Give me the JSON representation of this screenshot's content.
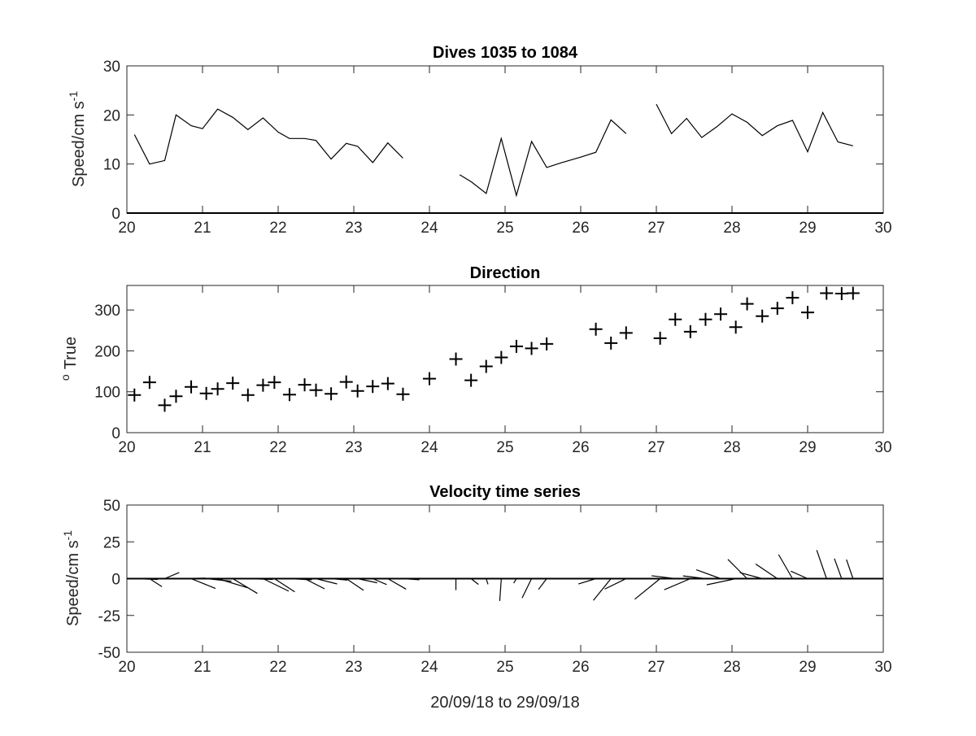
{
  "chart_data": [
    {
      "type": "line",
      "title": "Dives 1035 to 1084",
      "xlabel": "",
      "ylabel": "Speed/cm s",
      "ylabel_superscript": "-1",
      "xlim": [
        20,
        30
      ],
      "ylim": [
        0,
        30
      ],
      "xticks": [
        "20",
        "21",
        "22",
        "23",
        "24",
        "25",
        "26",
        "27",
        "28",
        "29",
        "30"
      ],
      "yticks": [
        "0",
        "10",
        "20",
        "30"
      ],
      "grid": false,
      "baseline": 0,
      "series": [
        {
          "segments": [
            [
              [
                20.1,
                16
              ],
              [
                20.3,
                10
              ],
              [
                20.5,
                10.7
              ],
              [
                20.65,
                20
              ],
              [
                20.85,
                17.8
              ],
              [
                21.0,
                17.2
              ],
              [
                21.2,
                21.2
              ],
              [
                21.4,
                19.5
              ],
              [
                21.6,
                17.0
              ],
              [
                21.8,
                19.4
              ],
              [
                22.0,
                16.5
              ],
              [
                22.15,
                15.2
              ],
              [
                22.35,
                15.2
              ],
              [
                22.5,
                14.8
              ],
              [
                22.7,
                11.0
              ],
              [
                22.9,
                14.2
              ],
              [
                23.05,
                13.6
              ],
              [
                23.25,
                10.3
              ],
              [
                23.45,
                14.3
              ],
              [
                23.65,
                11.2
              ]
            ],
            [
              [
                24.4,
                7.8
              ],
              [
                24.55,
                6.4
              ],
              [
                24.75,
                4.0
              ],
              [
                24.95,
                15.2
              ],
              [
                25.15,
                3.6
              ],
              [
                25.35,
                14.6
              ],
              [
                25.55,
                9.3
              ],
              [
                25.75,
                10.3
              ],
              [
                26.0,
                11.4
              ],
              [
                26.2,
                12.4
              ],
              [
                26.4,
                19.0
              ],
              [
                26.6,
                16.2
              ]
            ],
            [
              [
                27.0,
                22.2
              ],
              [
                27.2,
                16.2
              ],
              [
                27.4,
                19.3
              ],
              [
                27.6,
                15.4
              ],
              [
                27.8,
                17.6
              ],
              [
                28.0,
                20.2
              ],
              [
                28.2,
                18.5
              ],
              [
                28.4,
                15.8
              ],
              [
                28.6,
                17.8
              ],
              [
                28.8,
                18.9
              ],
              [
                29.0,
                12.5
              ],
              [
                29.2,
                20.5
              ],
              [
                29.4,
                14.5
              ],
              [
                29.6,
                13.7
              ]
            ]
          ]
        }
      ]
    },
    {
      "type": "scatter",
      "title": "Direction",
      "xlabel": "",
      "ylabel": "True",
      "ylabel_prefix": "o",
      "marker": "+",
      "xlim": [
        20,
        30
      ],
      "ylim": [
        0,
        360
      ],
      "xticks": [
        "20",
        "21",
        "22",
        "23",
        "24",
        "25",
        "26",
        "27",
        "28",
        "29",
        "30"
      ],
      "yticks": [
        "0",
        "100",
        "200",
        "300"
      ],
      "grid": false,
      "points": [
        [
          20.1,
          92
        ],
        [
          20.3,
          123
        ],
        [
          20.5,
          67
        ],
        [
          20.65,
          89
        ],
        [
          20.85,
          112
        ],
        [
          21.05,
          96
        ],
        [
          21.2,
          107
        ],
        [
          21.4,
          121
        ],
        [
          21.6,
          92
        ],
        [
          21.8,
          116
        ],
        [
          21.95,
          123
        ],
        [
          22.15,
          93
        ],
        [
          22.35,
          117
        ],
        [
          22.5,
          104
        ],
        [
          22.7,
          95
        ],
        [
          22.9,
          124
        ],
        [
          23.05,
          102
        ],
        [
          23.25,
          113
        ],
        [
          23.45,
          120
        ],
        [
          23.65,
          94
        ],
        [
          24.0,
          132
        ],
        [
          24.35,
          180
        ],
        [
          24.55,
          128
        ],
        [
          24.75,
          162
        ],
        [
          24.95,
          184
        ],
        [
          25.15,
          211
        ],
        [
          25.35,
          206
        ],
        [
          25.55,
          217
        ],
        [
          26.2,
          253
        ],
        [
          26.4,
          219
        ],
        [
          26.6,
          244
        ],
        [
          27.05,
          231
        ],
        [
          27.25,
          277
        ],
        [
          27.45,
          247
        ],
        [
          27.65,
          277
        ],
        [
          27.85,
          290
        ],
        [
          28.05,
          258
        ],
        [
          28.2,
          315
        ],
        [
          28.4,
          285
        ],
        [
          28.6,
          304
        ],
        [
          28.8,
          330
        ],
        [
          29.0,
          294
        ],
        [
          29.25,
          341
        ],
        [
          29.45,
          340
        ],
        [
          29.6,
          341
        ]
      ]
    },
    {
      "type": "quiver",
      "title": "Velocity time series",
      "xlabel": "20/09/18 to 29/09/18",
      "ylabel": "Speed/cm s",
      "ylabel_superscript": "-1",
      "xlim": [
        20,
        30
      ],
      "ylim": [
        -50,
        50
      ],
      "xticks": [
        "20",
        "21",
        "22",
        "23",
        "24",
        "25",
        "26",
        "27",
        "28",
        "29",
        "30"
      ],
      "yticks": [
        "-50",
        "-25",
        "0",
        "25",
        "50"
      ],
      "grid": false,
      "baseline": 0,
      "vectors": [
        [
          20.1,
          16,
          92
        ],
        [
          20.3,
          10,
          123
        ],
        [
          20.5,
          10.7,
          67
        ],
        [
          20.65,
          20,
          89
        ],
        [
          20.85,
          17.8,
          112
        ],
        [
          21.05,
          17.2,
          96
        ],
        [
          21.2,
          21.2,
          107
        ],
        [
          21.4,
          19.5,
          121
        ],
        [
          21.6,
          17,
          92
        ],
        [
          21.8,
          19.4,
          116
        ],
        [
          21.95,
          16.5,
          123
        ],
        [
          22.15,
          15.2,
          93
        ],
        [
          22.35,
          15.2,
          117
        ],
        [
          22.5,
          14.8,
          104
        ],
        [
          22.7,
          11,
          95
        ],
        [
          22.9,
          14.2,
          124
        ],
        [
          23.05,
          13.6,
          102
        ],
        [
          23.25,
          10.3,
          113
        ],
        [
          23.45,
          14.3,
          120
        ],
        [
          23.65,
          11.2,
          94
        ],
        [
          24.35,
          7.8,
          180
        ],
        [
          24.55,
          6.4,
          128
        ],
        [
          24.75,
          4.0,
          162
        ],
        [
          24.95,
          15.2,
          184
        ],
        [
          25.15,
          3.6,
          211
        ],
        [
          25.35,
          14.6,
          206
        ],
        [
          25.55,
          9.3,
          217
        ],
        [
          26.2,
          12.4,
          253
        ],
        [
          26.4,
          19.0,
          219
        ],
        [
          26.6,
          16.2,
          244
        ],
        [
          27.05,
          22.2,
          231
        ],
        [
          27.25,
          16.2,
          277
        ],
        [
          27.45,
          19.3,
          247
        ],
        [
          27.65,
          15.4,
          277
        ],
        [
          27.85,
          17.6,
          290
        ],
        [
          28.05,
          20.2,
          258
        ],
        [
          28.2,
          18.5,
          315
        ],
        [
          28.4,
          15.8,
          285
        ],
        [
          28.6,
          17.8,
          304
        ],
        [
          28.8,
          18.9,
          330
        ],
        [
          29.0,
          12.5,
          294
        ],
        [
          29.25,
          20.5,
          341
        ],
        [
          29.45,
          14.5,
          340
        ],
        [
          29.6,
          13.7,
          341
        ]
      ]
    }
  ]
}
